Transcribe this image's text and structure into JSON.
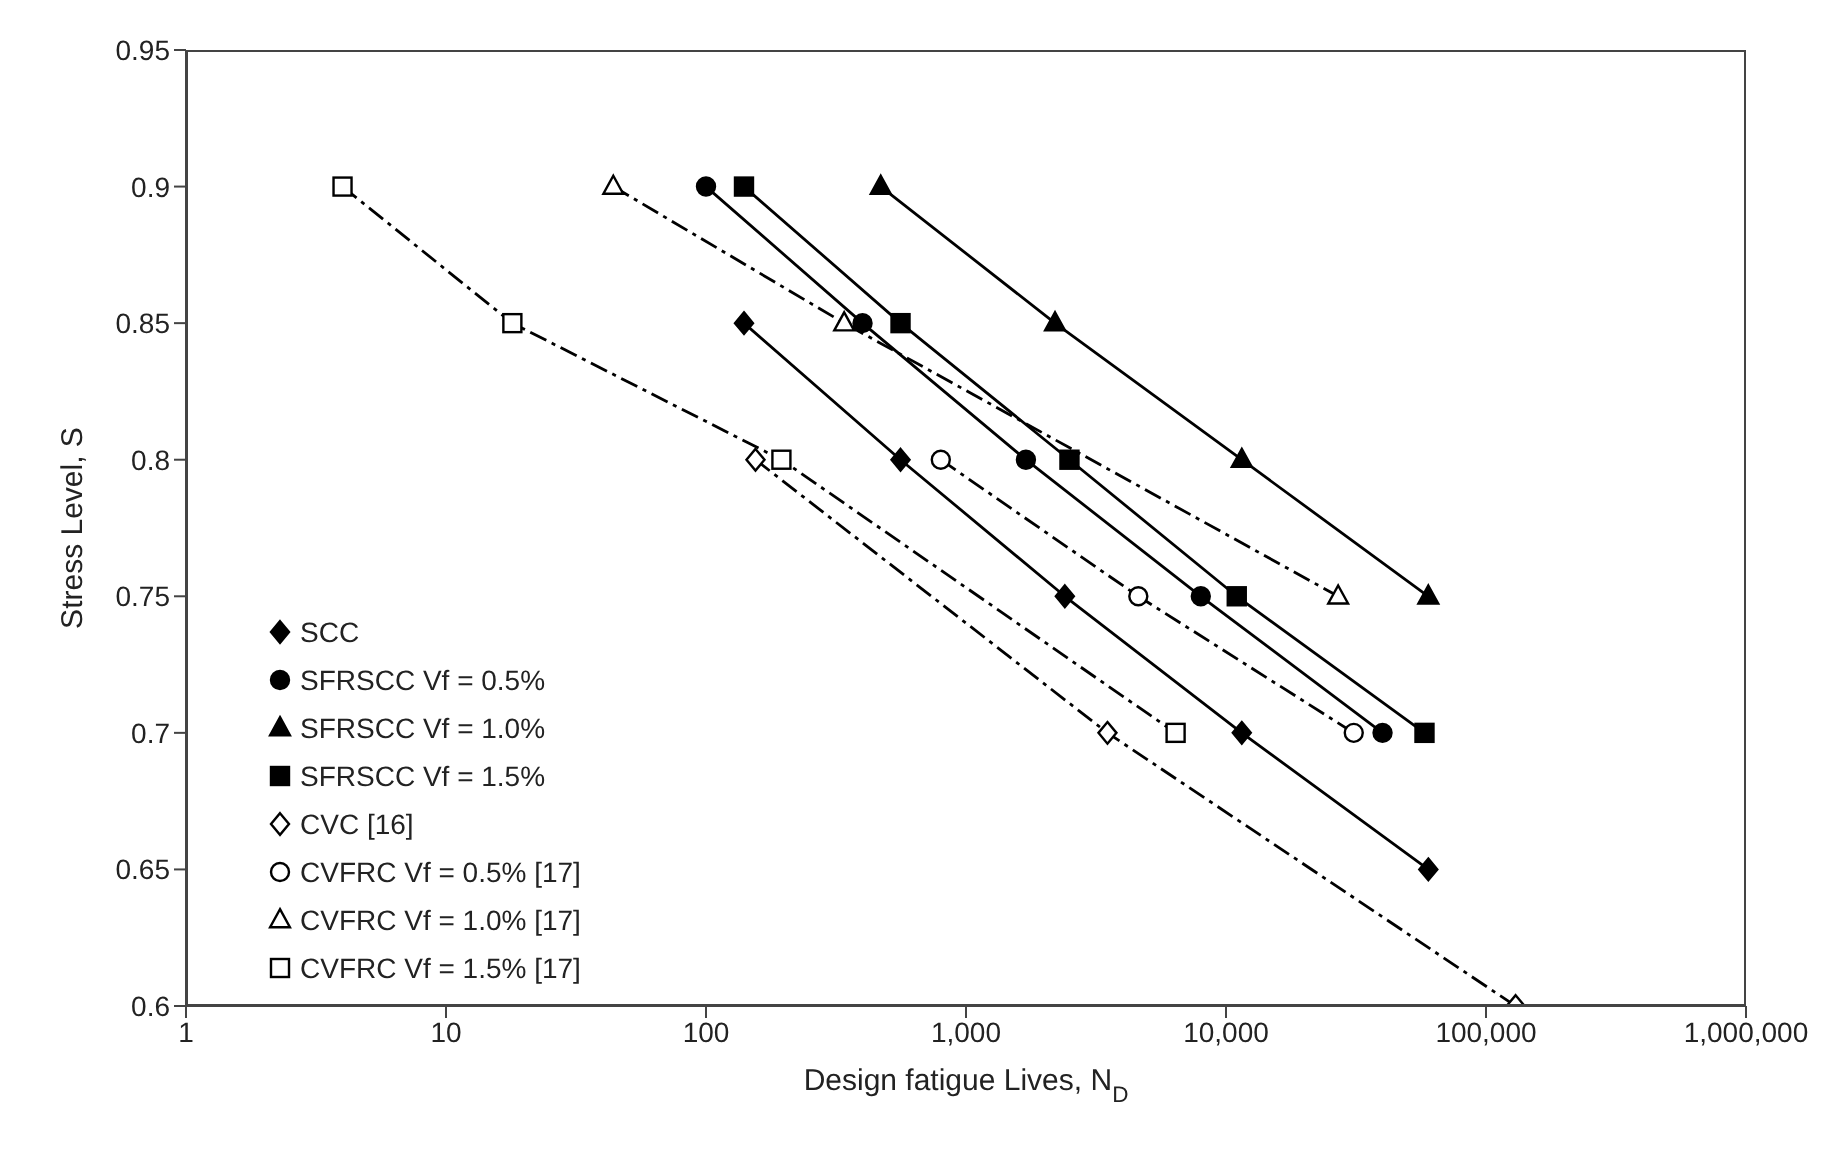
{
  "chart_data": {
    "type": "line",
    "xlabel": "Design fatigue Lives, N$_{D}$",
    "ylabel": "Stress Level, S",
    "log": "x",
    "xlim": [
      1,
      1000000
    ],
    "xticks": [
      1,
      10,
      100,
      {
        "value": 1000,
        "label": "1,000"
      },
      {
        "value": 10000,
        "label": "10,000"
      },
      {
        "value": 100000,
        "label": "100,000"
      },
      {
        "value": 1000000,
        "label": "1,000,000"
      }
    ],
    "ylim": [
      0.6,
      0.95
    ],
    "yticks": [
      0.6,
      0.65,
      0.7,
      0.75,
      0.8,
      0.85,
      0.9,
      0.95
    ],
    "legend": "bottom left",
    "series": [
      {
        "name": "SCC",
        "color": "#000000",
        "marker": "diamond",
        "line_style": "solid",
        "x": [
          140,
          560,
          2400,
          11500,
          60000
        ],
        "values": [
          0.85,
          0.8,
          0.75,
          0.7,
          0.65
        ]
      },
      {
        "name": "SFRSCC Vf = 0.5%",
        "color": "#000000",
        "marker": "circle",
        "line_style": "solid",
        "x": [
          100,
          400,
          1700,
          8000,
          40000
        ],
        "values": [
          0.9,
          0.85,
          0.8,
          0.75,
          0.7
        ]
      },
      {
        "name": "SFRSCC Vf = 1.0%",
        "color": "#000000",
        "marker": "triangle",
        "line_style": "solid",
        "x": [
          470,
          2200,
          11500,
          60000
        ],
        "values": [
          0.9,
          0.85,
          0.8,
          0.75
        ]
      },
      {
        "name": "SFRSCC Vf = 1.5%",
        "color": "#000000",
        "marker": "square",
        "line_style": "solid",
        "x": [
          140,
          560,
          2500,
          11000,
          58000
        ],
        "values": [
          0.9,
          0.85,
          0.8,
          0.75,
          0.7
        ]
      },
      {
        "name": "CVC [16]",
        "color": "#000000",
        "marker": "diamond",
        "line_style": "dashed",
        "x": [
          155,
          3500,
          130000
        ],
        "values": [
          0.8,
          0.7,
          0.6
        ]
      },
      {
        "name": "CVFRC Vf = 0.5% [17]",
        "color": "#000000",
        "marker": "circle",
        "line_style": "dashed",
        "x": [
          800,
          4600,
          31000
        ],
        "values": [
          0.8,
          0.75,
          0.7
        ]
      },
      {
        "name": "CVFRC Vf = 1.0% [17]",
        "color": "#000000",
        "marker": "triangle",
        "line_style": "dashed",
        "x": [
          44,
          340,
          27000
        ],
        "values": [
          0.9,
          0.85,
          0.75
        ]
      },
      {
        "name": "CVFRC Vf = 1.5% [17]",
        "color": "#000000",
        "marker": "square",
        "line_style": "dashed",
        "x": [
          4,
          18,
          195,
          6400
        ],
        "values": [
          0.9,
          0.85,
          0.8,
          0.7
        ]
      }
    ]
  }
}
